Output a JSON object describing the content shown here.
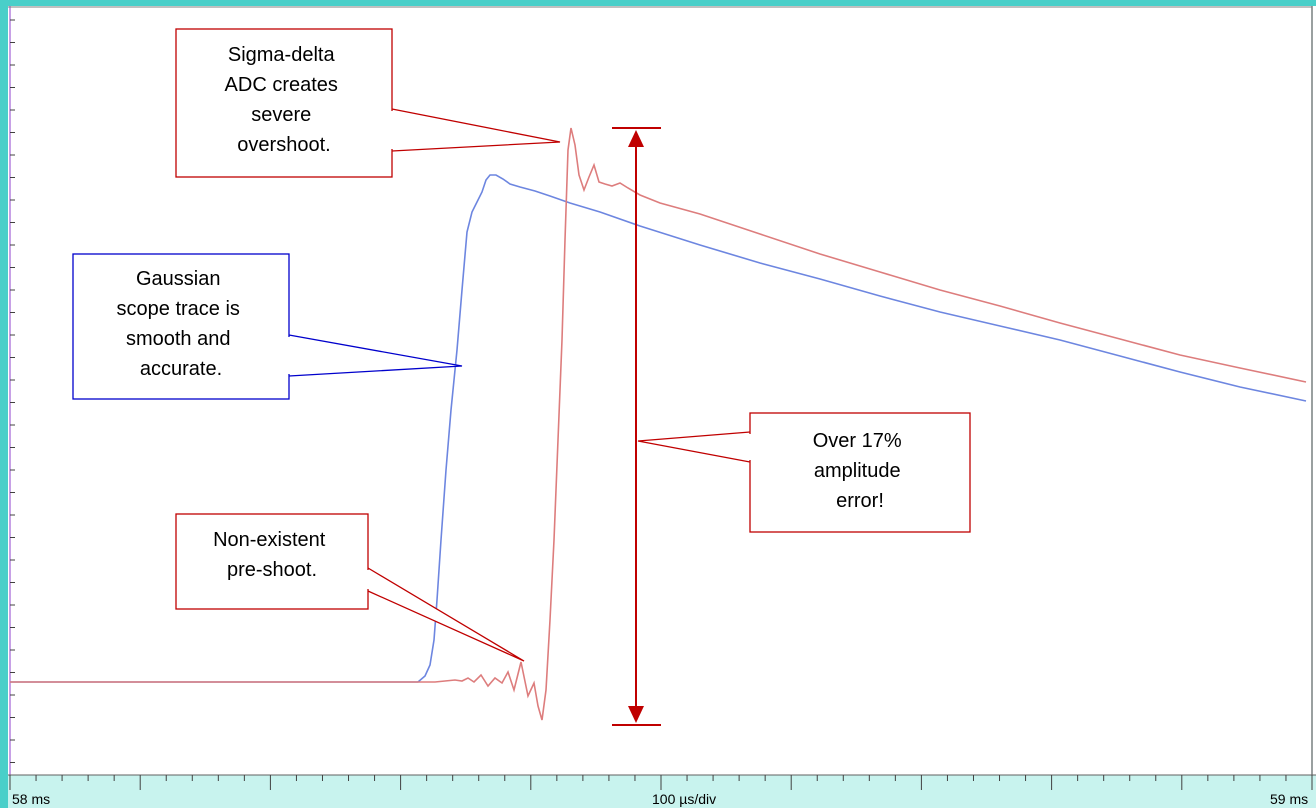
{
  "timebase": {
    "start_label": "58 ms",
    "scale_label": "100 µs/div",
    "end_label": "59 ms"
  },
  "colors": {
    "gaussian_trace": "#6d86e0",
    "sigma_delta_trace": "#dd7d7d",
    "callout_red": "#c00000",
    "callout_blue": "#0000cc",
    "frame_teal": "#49cfc9",
    "axis_strip": "#c8f3ee"
  },
  "callouts": {
    "sigma_delta": [
      "Sigma-delta",
      "ADC creates",
      "severe",
      "overshoot."
    ],
    "gaussian": [
      "Gaussian",
      "scope trace is",
      "smooth and",
      "accurate."
    ],
    "preshoot": [
      "Non-existent",
      "pre-shoot."
    ],
    "amplitude": [
      "Over 17%",
      "amplitude",
      "error!"
    ]
  }
}
